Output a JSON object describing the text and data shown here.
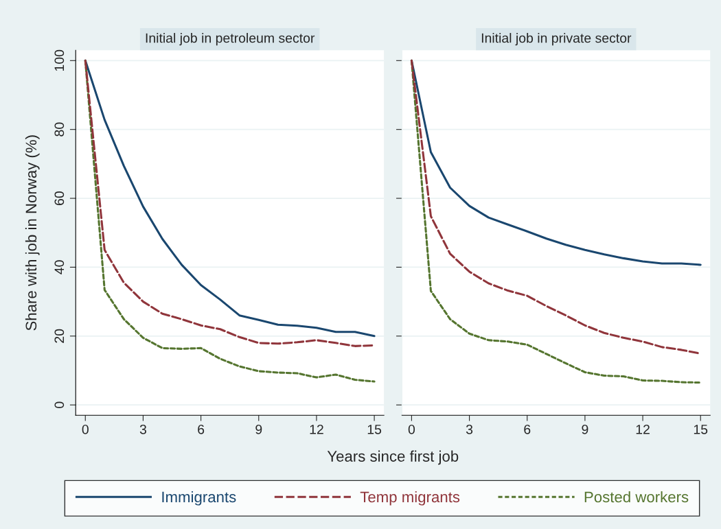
{
  "chart_data": [
    {
      "type": "line",
      "title": "Initial job in petroleum sector",
      "ylabel": "Share with job in Norway (%)",
      "xlabel": "Years since first job",
      "x": [
        0,
        1,
        2,
        3,
        4,
        5,
        6,
        7,
        8,
        9,
        10,
        11,
        12,
        13,
        14,
        15
      ],
      "series": [
        {
          "name": "Immigrants",
          "color": "#1a476f",
          "line_style": "solid",
          "values": [
            100,
            82.8,
            69.4,
            57.6,
            48.2,
            40.7,
            34.8,
            30.6,
            26.0,
            24.7,
            23.3,
            23.0,
            22.4,
            21.2,
            21.2,
            20.0
          ]
        },
        {
          "name": "Temp migrants",
          "color": "#90353b",
          "line_style": "dashed",
          "values": [
            100,
            45.0,
            35.5,
            30.0,
            26.5,
            24.9,
            23.1,
            22.0,
            19.7,
            18.0,
            17.8,
            18.2,
            18.8,
            18.0,
            17.1,
            17.3
          ]
        },
        {
          "name": "Posted workers",
          "color": "#55752f",
          "line_style": "dotted",
          "values": [
            100,
            33.4,
            24.9,
            19.5,
            16.5,
            16.3,
            16.5,
            13.4,
            11.2,
            9.8,
            9.4,
            9.2,
            8.0,
            8.8,
            7.3,
            6.8
          ]
        }
      ],
      "xlim": [
        -0.5,
        15.5
      ],
      "ylim": [
        -3,
        103
      ],
      "xticks": [
        0,
        3,
        6,
        9,
        12,
        15
      ],
      "yticks": [
        0,
        20,
        40,
        60,
        80,
        100
      ],
      "grid": "y",
      "legend": "bottom"
    },
    {
      "type": "line",
      "title": "Initial job in private sector",
      "x": [
        0,
        1,
        2,
        3,
        4,
        5,
        6,
        7,
        8,
        9,
        10,
        11,
        12,
        13,
        14,
        15
      ],
      "series": [
        {
          "color": "#1a476f",
          "line_style": "solid",
          "values": [
            100,
            73.4,
            63.1,
            57.8,
            54.4,
            52.4,
            50.4,
            48.3,
            46.5,
            45.0,
            43.7,
            42.6,
            41.7,
            41.1,
            41.1,
            40.7
          ]
        },
        {
          "color": "#90353b",
          "line_style": "dashed",
          "values": [
            100,
            54.8,
            43.9,
            38.7,
            35.3,
            33.2,
            31.7,
            28.7,
            26.0,
            23.1,
            20.9,
            19.5,
            18.4,
            16.8,
            16.0,
            14.9
          ]
        },
        {
          "color": "#55752f",
          "line_style": "dotted",
          "values": [
            100,
            33.1,
            24.9,
            20.7,
            18.8,
            18.4,
            17.5,
            14.8,
            12.1,
            9.5,
            8.5,
            8.3,
            7.1,
            7.0,
            6.6,
            6.5
          ]
        }
      ],
      "xlim": [
        -0.5,
        15.5
      ],
      "ylim": [
        -3,
        103
      ],
      "xticks": [
        0,
        3,
        6,
        9,
        12,
        15
      ],
      "yticks": [
        0,
        20,
        40,
        60,
        80,
        100
      ],
      "grid": "y",
      "tick_labels": "x"
    }
  ]
}
